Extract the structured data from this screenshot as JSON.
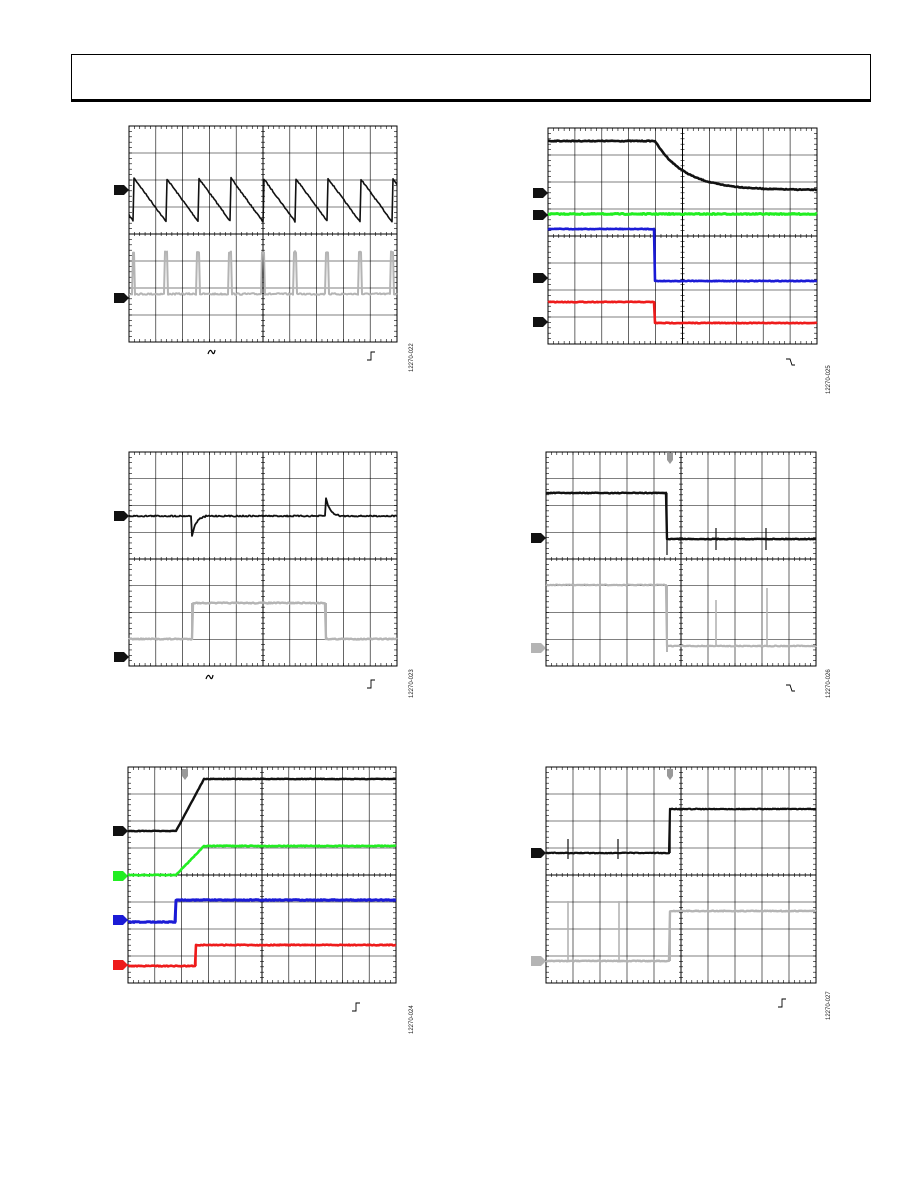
{
  "colors": {
    "black": "#111111",
    "gray": "#b4b4b4",
    "green": "#22ee22",
    "blue": "#1b1bd6",
    "red": "#ee1b1b",
    "grid": "#000000"
  },
  "figures": [
    {
      "id": "fig-22",
      "label": "12270-022",
      "marker_channels": [
        "black",
        "gray"
      ],
      "has_trigger_arrow": false,
      "footer_icons": [
        "tilde-icon",
        "rising-edge-icon"
      ]
    },
    {
      "id": "fig-25",
      "label": "12270-025",
      "marker_channels": [
        "black",
        "green",
        "blue",
        "red"
      ],
      "has_trigger_arrow": false,
      "footer_icons": [
        "falling-edge-icon"
      ]
    },
    {
      "id": "fig-23",
      "label": "12270-023",
      "marker_channels": [
        "black",
        "black"
      ],
      "has_trigger_arrow": false,
      "footer_icons": [
        "tilde-icon",
        "rising-edge-icon"
      ]
    },
    {
      "id": "fig-26",
      "label": "12270-026",
      "marker_channels": [
        "black",
        "gray"
      ],
      "has_trigger_arrow": true,
      "footer_icons": [
        "falling-edge-icon"
      ]
    },
    {
      "id": "fig-24",
      "label": "12270-024",
      "marker_channels": [
        "black",
        "green",
        "blue",
        "red"
      ],
      "has_trigger_arrow": true,
      "footer_icons": [
        "rising-edge-icon"
      ]
    },
    {
      "id": "fig-27",
      "label": "12270-027",
      "marker_channels": [
        "black",
        "gray"
      ],
      "has_trigger_arrow": true,
      "footer_icons": [
        "rising-edge-icon"
      ]
    }
  ]
}
